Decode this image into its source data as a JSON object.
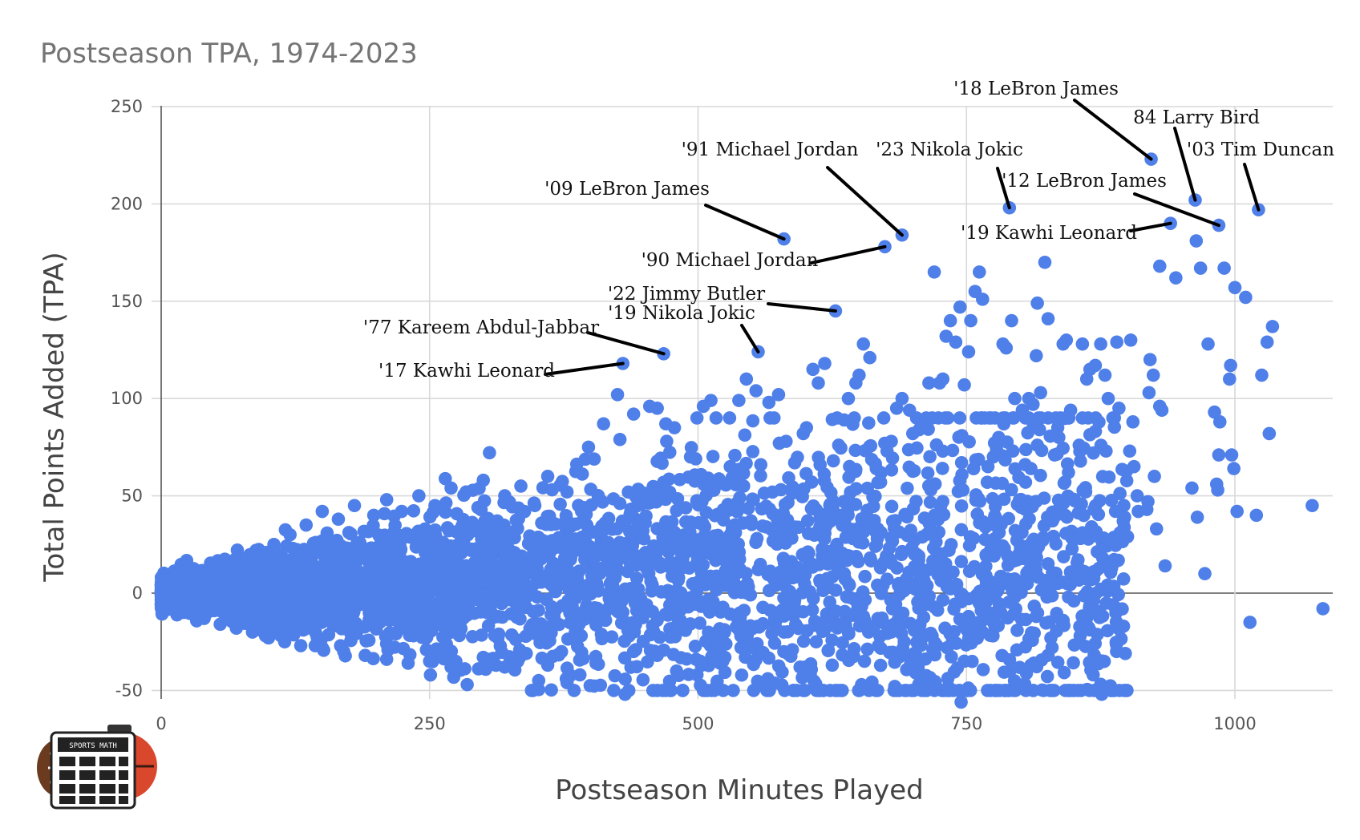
{
  "chart_data": {
    "type": "scatter",
    "title": "Postseason TPA, 1974-2023",
    "xlabel": "Postseason Minutes Played",
    "ylabel": "Total Points Added (TPA)",
    "xlim": [
      0,
      1090
    ],
    "ylim": [
      -55,
      250
    ],
    "x_ticks": [
      0,
      250,
      500,
      750,
      1000
    ],
    "y_ticks": [
      -50,
      0,
      50,
      100,
      150,
      200,
      250
    ],
    "grid": true,
    "legend": "none",
    "point_color": "#4f7fe8",
    "highlighted_points": [
      {
        "label": "'18 LeBron James",
        "x": 922,
        "y": 223
      },
      {
        "label": "84 Larry Bird",
        "x": 963,
        "y": 202
      },
      {
        "label": "'03 Tim Duncan",
        "x": 1022,
        "y": 197
      },
      {
        "label": "'12 LeBron James",
        "x": 985,
        "y": 189
      },
      {
        "label": "'19 Kawhi Leonard",
        "x": 940,
        "y": 190
      },
      {
        "label": "'23 Nikola Jokic",
        "x": 790,
        "y": 198
      },
      {
        "label": "'91 Michael Jordan",
        "x": 690,
        "y": 184
      },
      {
        "label": "'90 Michael Jordan",
        "x": 674,
        "y": 178
      },
      {
        "label": "'09 LeBron James",
        "x": 580,
        "y": 182
      },
      {
        "label": "'22 Jimmy Butler",
        "x": 628,
        "y": 145
      },
      {
        "label": "'19 Nikola Jokic",
        "x": 556,
        "y": 124
      },
      {
        "label": "'77 Kareem Abdul-Jabbar",
        "x": 468,
        "y": 123
      },
      {
        "label": "'17 Kawhi Leonard",
        "x": 430,
        "y": 118
      }
    ],
    "other_points": [
      [
        1072,
        45
      ],
      [
        1082,
        -8
      ],
      [
        1032,
        82
      ],
      [
        1035,
        137
      ],
      [
        1030,
        129
      ],
      [
        1025,
        112
      ],
      [
        1020,
        40
      ],
      [
        1010,
        152
      ],
      [
        1000,
        157
      ],
      [
        996,
        117
      ],
      [
        995,
        110
      ],
      [
        997,
        71
      ],
      [
        999,
        64
      ],
      [
        1002,
        42
      ],
      [
        990,
        167
      ],
      [
        986,
        88
      ],
      [
        983,
        56
      ],
      [
        984,
        53
      ],
      [
        985,
        71
      ],
      [
        964,
        181
      ],
      [
        968,
        167
      ],
      [
        975,
        128
      ],
      [
        981,
        93
      ],
      [
        965,
        39
      ],
      [
        972,
        10
      ],
      [
        960,
        54
      ],
      [
        945,
        162
      ],
      [
        930,
        168
      ],
      [
        921,
        120
      ],
      [
        924,
        112
      ],
      [
        932,
        94
      ],
      [
        930,
        96
      ],
      [
        920,
        103
      ],
      [
        925,
        60
      ],
      [
        919,
        47
      ],
      [
        918,
        43
      ],
      [
        909,
        50
      ],
      [
        927,
        33
      ],
      [
        935,
        14
      ],
      [
        903,
        130
      ],
      [
        905,
        88
      ],
      [
        902,
        73
      ],
      [
        906,
        65
      ],
      [
        910,
        42
      ],
      [
        900,
        29
      ],
      [
        896,
        37
      ],
      [
        890,
        129
      ],
      [
        892,
        95
      ],
      [
        893,
        31
      ],
      [
        888,
        -7
      ],
      [
        882,
        100
      ],
      [
        880,
        73
      ],
      [
        876,
        -52
      ],
      [
        868,
        -42
      ],
      [
        870,
        117
      ],
      [
        875,
        128
      ],
      [
        879,
        112
      ],
      [
        862,
        110
      ],
      [
        865,
        115
      ],
      [
        858,
        128
      ],
      [
        855,
        76
      ],
      [
        861,
        52
      ],
      [
        858,
        31
      ],
      [
        852,
        12
      ],
      [
        850,
        -4
      ],
      [
        840,
        128
      ],
      [
        843,
        130
      ],
      [
        847,
        94
      ],
      [
        845,
        62
      ],
      [
        842,
        40
      ],
      [
        835,
        85
      ],
      [
        836,
        80
      ],
      [
        832,
        71
      ],
      [
        826,
        141
      ],
      [
        823,
        170
      ],
      [
        816,
        149
      ],
      [
        815,
        122
      ],
      [
        819,
        103
      ],
      [
        812,
        97
      ],
      [
        808,
        100
      ],
      [
        802,
        94
      ],
      [
        805,
        90
      ],
      [
        818,
        84
      ],
      [
        816,
        76
      ],
      [
        810,
        64
      ],
      [
        805,
        57
      ],
      [
        800,
        48
      ],
      [
        795,
        100
      ],
      [
        792,
        140
      ],
      [
        784,
        128
      ],
      [
        787,
        126
      ],
      [
        780,
        80
      ],
      [
        778,
        74
      ],
      [
        775,
        70
      ],
      [
        770,
        65
      ],
      [
        765,
        151
      ],
      [
        762,
        165
      ],
      [
        758,
        155
      ],
      [
        754,
        140
      ],
      [
        752,
        124
      ],
      [
        748,
        107
      ],
      [
        744,
        147
      ],
      [
        740,
        129
      ],
      [
        735,
        140
      ],
      [
        731,
        132
      ],
      [
        728,
        110
      ],
      [
        725,
        108
      ],
      [
        720,
        165
      ],
      [
        715,
        108
      ],
      [
        711,
        86
      ],
      [
        706,
        84
      ],
      [
        700,
        82
      ],
      [
        697,
        94
      ],
      [
        690,
        100
      ],
      [
        685,
        95
      ],
      [
        680,
        78
      ],
      [
        676,
        73
      ],
      [
        670,
        57
      ],
      [
        666,
        64
      ],
      [
        660,
        121
      ],
      [
        654,
        128
      ],
      [
        650,
        112
      ],
      [
        647,
        108
      ],
      [
        640,
        100
      ],
      [
        636,
        89
      ],
      [
        631,
        76
      ],
      [
        626,
        68
      ],
      [
        618,
        118
      ],
      [
        612,
        108
      ],
      [
        607,
        115
      ],
      [
        601,
        85
      ],
      [
        598,
        82
      ],
      [
        590,
        67
      ],
      [
        582,
        78
      ],
      [
        575,
        102
      ],
      [
        566,
        98
      ],
      [
        554,
        104
      ],
      [
        545,
        110
      ],
      [
        538,
        99
      ],
      [
        530,
        65
      ],
      [
        518,
        56
      ],
      [
        512,
        99
      ],
      [
        505,
        96
      ],
      [
        499,
        90
      ],
      [
        493,
        70
      ],
      [
        478,
        85
      ],
      [
        470,
        87
      ],
      [
        462,
        95
      ],
      [
        455,
        96
      ],
      [
        440,
        92
      ],
      [
        425,
        102
      ],
      [
        412,
        87
      ],
      [
        398,
        75
      ],
      [
        378,
        52
      ],
      [
        360,
        60
      ],
      [
        348,
        45
      ],
      [
        335,
        55
      ],
      [
        320,
        50
      ],
      [
        300,
        58
      ],
      [
        284,
        52
      ],
      [
        270,
        54
      ],
      [
        255,
        45
      ],
      [
        240,
        50
      ],
      [
        224,
        42
      ],
      [
        210,
        48
      ],
      [
        198,
        40
      ],
      [
        180,
        45
      ],
      [
        165,
        38
      ],
      [
        150,
        42
      ],
      [
        135,
        35
      ],
      [
        120,
        30
      ],
      [
        105,
        25
      ],
      [
        92,
        20
      ],
      [
        80,
        18
      ],
      [
        68,
        15
      ],
      [
        55,
        12
      ],
      [
        42,
        10
      ],
      [
        30,
        8
      ],
      [
        20,
        6
      ],
      [
        12,
        4
      ],
      [
        8,
        -4
      ],
      [
        15,
        -7
      ],
      [
        25,
        -10
      ],
      [
        40,
        -13
      ],
      [
        55,
        -16
      ],
      [
        70,
        -18
      ],
      [
        85,
        -20
      ],
      [
        100,
        -23
      ],
      [
        115,
        -25
      ],
      [
        130,
        -27
      ],
      [
        150,
        -28
      ],
      [
        170,
        -30
      ],
      [
        190,
        -32
      ],
      [
        210,
        -34
      ],
      [
        230,
        -36
      ],
      [
        250,
        -35
      ],
      [
        270,
        -38
      ],
      [
        285,
        -47
      ],
      [
        300,
        -33
      ],
      [
        320,
        -38
      ],
      [
        340,
        -31
      ],
      [
        360,
        -37
      ],
      [
        378,
        -46
      ],
      [
        390,
        -42
      ],
      [
        405,
        -36
      ],
      [
        432,
        -52
      ],
      [
        440,
        -30
      ],
      [
        458,
        -50
      ],
      [
        462,
        -32
      ],
      [
        480,
        -40
      ],
      [
        502,
        -35
      ],
      [
        515,
        -50
      ],
      [
        525,
        -33
      ],
      [
        540,
        -28
      ],
      [
        555,
        -26
      ],
      [
        565,
        -44
      ],
      [
        580,
        -20
      ],
      [
        595,
        -38
      ],
      [
        610,
        -25
      ],
      [
        625,
        -37
      ],
      [
        640,
        -20
      ],
      [
        655,
        -35
      ],
      [
        668,
        -27
      ],
      [
        680,
        -20
      ],
      [
        692,
        -25
      ],
      [
        705,
        -38
      ],
      [
        718,
        -22
      ],
      [
        730,
        -18
      ],
      [
        745,
        -56
      ],
      [
        748,
        -35
      ],
      [
        752,
        -12
      ],
      [
        765,
        -5
      ],
      [
        775,
        -15
      ],
      [
        782,
        -10
      ],
      [
        795,
        -2
      ],
      [
        810,
        -37
      ],
      [
        815,
        -12
      ],
      [
        825,
        -2
      ],
      [
        835,
        5
      ],
      [
        845,
        -2
      ],
      [
        860,
        10
      ],
      [
        875,
        2
      ],
      [
        1014,
        -15
      ],
      [
        703,
        -32
      ]
    ]
  }
}
